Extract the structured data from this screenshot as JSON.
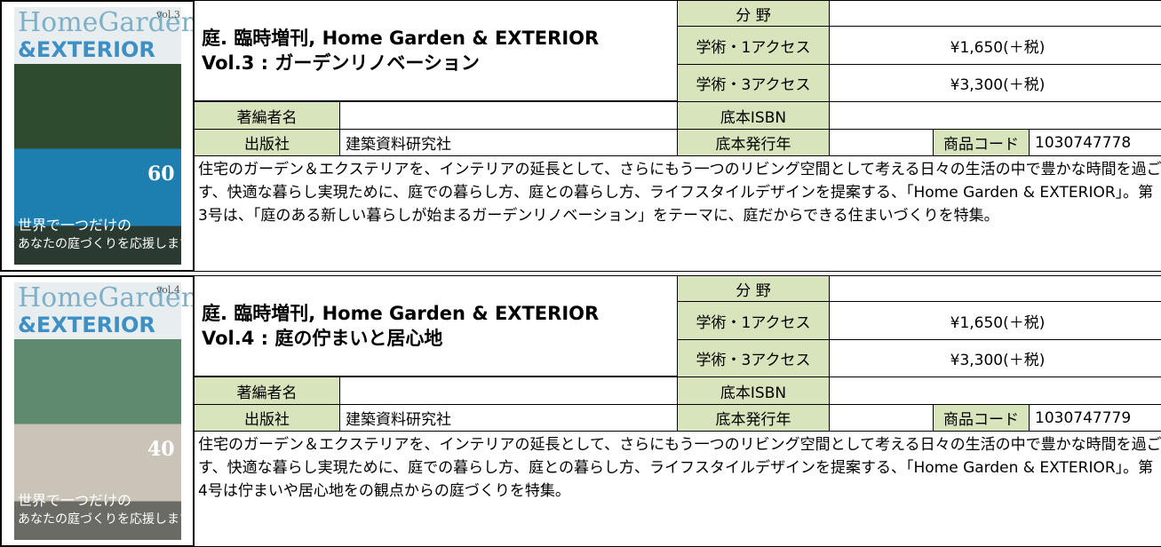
{
  "entries": [
    {
      "cover": {
        "masthead": "HomeGarden",
        "sub": "&EXTERIOR",
        "vol": "vol.3",
        "number": "60",
        "tagline": [
          "世界で一つだけの",
          "あなたの庭づくりを応援します"
        ]
      },
      "title": [
        "庭. 臨時増刊, Home Garden & EXTERIOR",
        "Vol.3 : ガーデンリノベーション"
      ],
      "labels": {
        "field": "分 野",
        "access1": "学術・1アクセス",
        "access3": "学術・3アクセス",
        "author": "著編者名",
        "isbn": "底本ISBN",
        "publisher": "出版社",
        "year": "底本発行年",
        "code": "商品コード"
      },
      "price1": "¥1,650(＋税)",
      "price3": "¥3,300(＋税)",
      "publisher": "建築資料研究社",
      "code": "1030747778",
      "description": "住宅のガーデン＆エクステリアを、インテリアの延長として、さらにもう一つのリビング空間として考える日々の生活の中で豊かな時間を過ごす、快適な暮らし実現ために、庭での暮らし方、庭との暮らし方、ライフスタイルデザインを提案する、「Home Garden & EXTERIOR」。第3号は、「庭のある新しい暮らしが始まるガーデンリノベーション」をテーマに、庭だからできる住まいづくりを特集。"
    },
    {
      "cover": {
        "masthead": "HomeGarden",
        "sub": "&EXTERIOR",
        "vol": "vol.4",
        "number": "40",
        "tagline": [
          "世界で一つだけの",
          "あなたの庭づくりを応援します"
        ]
      },
      "title": [
        "庭. 臨時増刊, Home Garden & EXTERIOR",
        "Vol.4 : 庭の佇まいと居心地"
      ],
      "labels": {
        "field": "分 野",
        "access1": "学術・1アクセス",
        "access3": "学術・3アクセス",
        "author": "著編者名",
        "isbn": "底本ISBN",
        "publisher": "出版社",
        "year": "底本発行年",
        "code": "商品コード"
      },
      "price1": "¥1,650(＋税)",
      "price3": "¥3,300(＋税)",
      "publisher": "建築資料研究社",
      "code": "1030747779",
      "description": "住宅のガーデン＆エクステリアを、インテリアの延長として、さらにもう一つのリビング空間として考える日々の生活の中で豊かな時間を過ごす、快適な暮らし実現ために、庭での暮らし方、庭との暮らし方、ライフスタイルデザインを提案する、「Home Garden & EXTERIOR」。第4号は佇まいや居心地をの観点からの庭づくりを特集。"
    }
  ]
}
